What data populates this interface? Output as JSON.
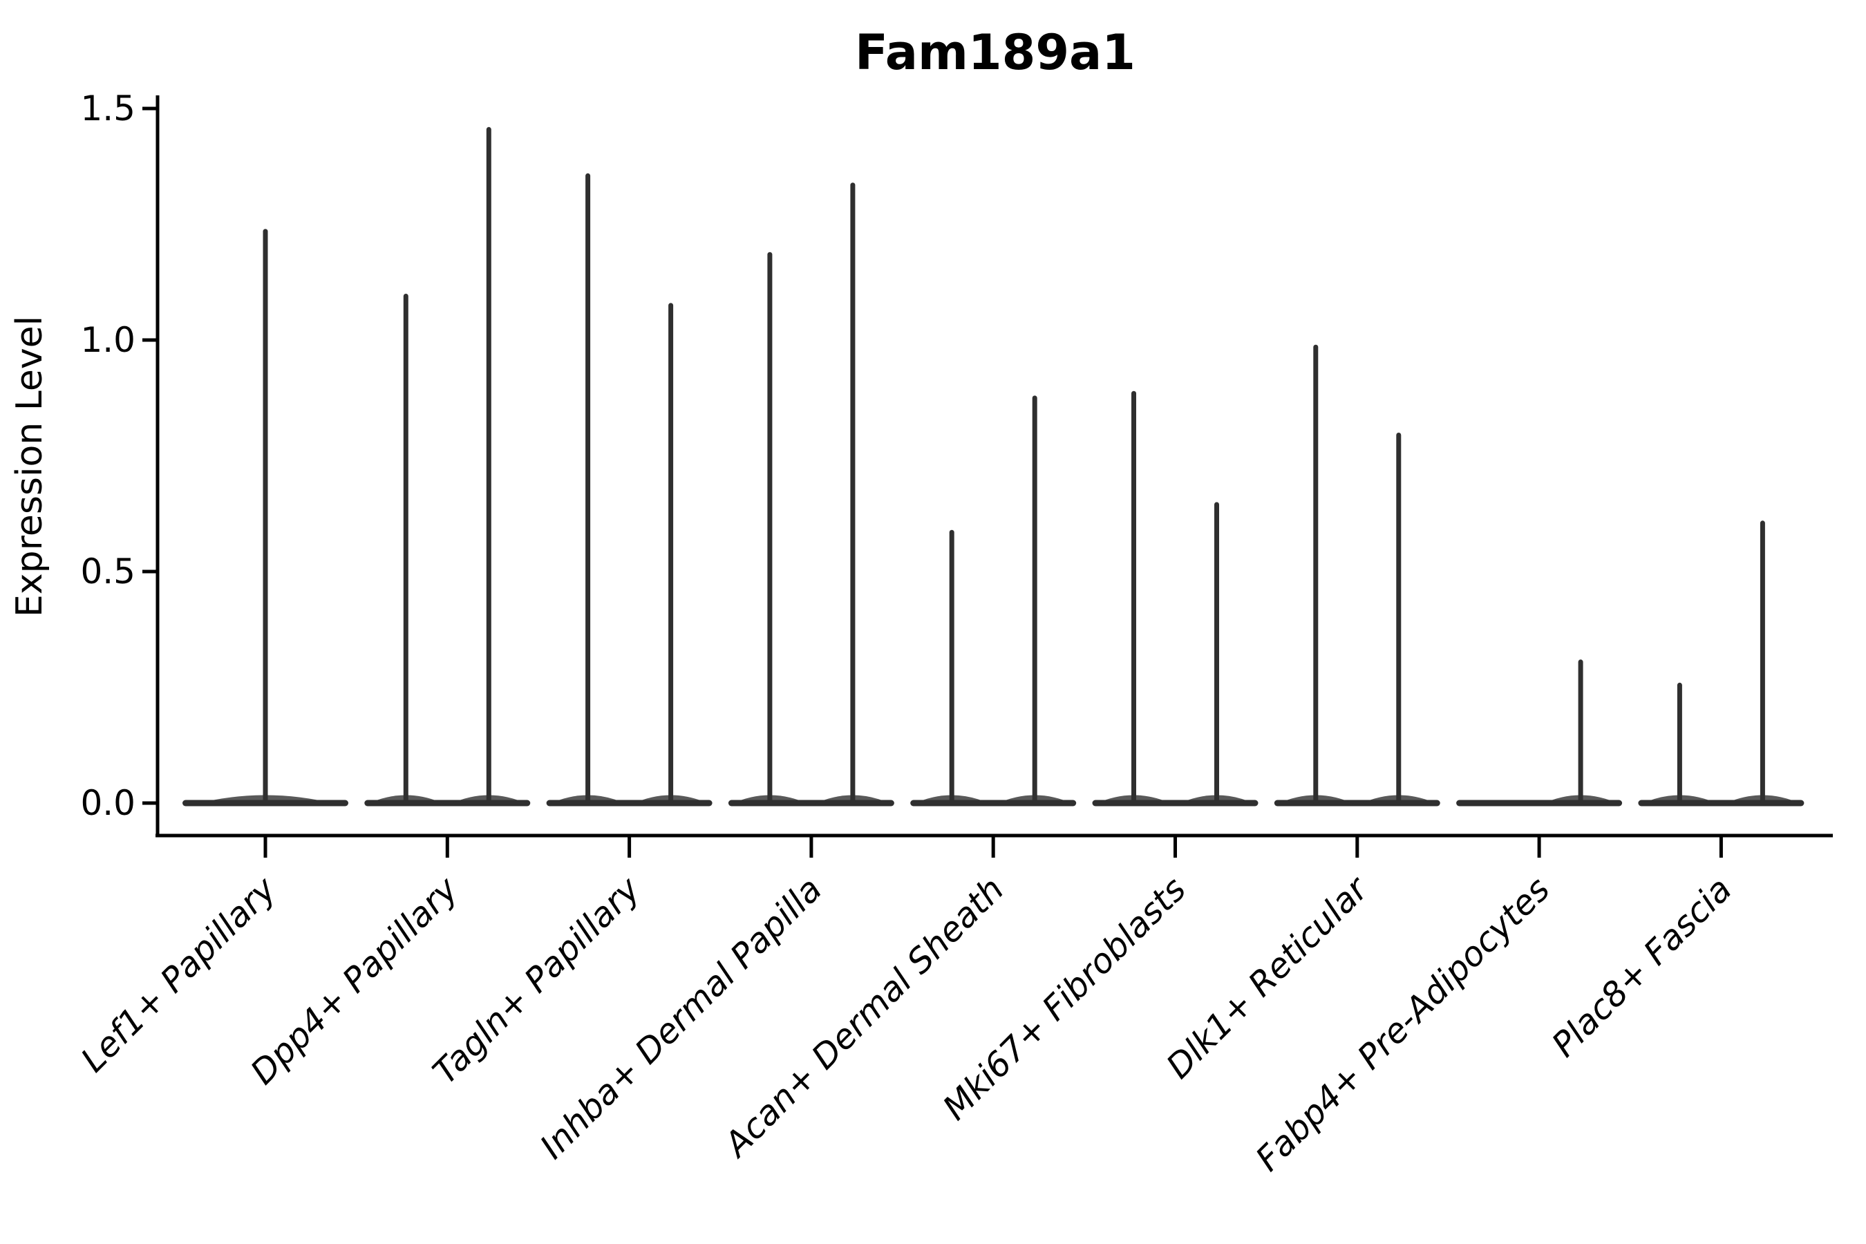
{
  "chart_data": {
    "type": "violin",
    "title": "Fam189a1",
    "ylabel": "Expression Level",
    "xlabel": "",
    "ylim": [
      0.0,
      1.5
    ],
    "ytick_values": [
      0.0,
      0.5,
      1.0,
      1.5
    ],
    "ytick_labels": [
      "0.0",
      "0.5",
      "1.0",
      "1.5"
    ],
    "grid": false,
    "legend_position": "none",
    "background_color": "#ffffff",
    "x_label_rotation_deg": 45,
    "x_label_style": "italic",
    "categories": [
      "Lef1+ Papillary",
      "Dpp4+ Papillary",
      "Tagln+ Papillary",
      "Inhba+ Dermal Papilla",
      "Acan+ Dermal Sheath",
      "Mki67+ Fibroblasts",
      "Dlk1+ Reticular",
      "Fabp4+ Pre-Adipocytes",
      "Plac8+ Fascia"
    ],
    "violins": [
      {
        "category": "Lef1+ Papillary",
        "spikes": [
          {
            "position": "center",
            "max_expression": 1.24
          }
        ]
      },
      {
        "category": "Dpp4+ Papillary",
        "spikes": [
          {
            "position": "left",
            "max_expression": 1.1
          },
          {
            "position": "right",
            "max_expression": 1.46
          }
        ]
      },
      {
        "category": "Tagln+ Papillary",
        "spikes": [
          {
            "position": "left",
            "max_expression": 1.36
          },
          {
            "position": "right",
            "max_expression": 1.08
          }
        ]
      },
      {
        "category": "Inhba+ Dermal Papilla",
        "spikes": [
          {
            "position": "left",
            "max_expression": 1.19
          },
          {
            "position": "right",
            "max_expression": 1.34
          }
        ]
      },
      {
        "category": "Acan+ Dermal Sheath",
        "spikes": [
          {
            "position": "left",
            "max_expression": 0.59
          },
          {
            "position": "right",
            "max_expression": 0.88
          }
        ]
      },
      {
        "category": "Mki67+ Fibroblasts",
        "spikes": [
          {
            "position": "left",
            "max_expression": 0.89
          },
          {
            "position": "right",
            "max_expression": 0.65
          }
        ]
      },
      {
        "category": "Dlk1+ Reticular",
        "spikes": [
          {
            "position": "left",
            "max_expression": 0.99
          },
          {
            "position": "right",
            "max_expression": 0.8
          }
        ]
      },
      {
        "category": "Fabp4+ Pre-Adipocytes",
        "spikes": [
          {
            "position": "left",
            "max_expression": 0.0
          },
          {
            "position": "right",
            "max_expression": 0.31
          }
        ]
      },
      {
        "category": "Plac8+ Fascia",
        "spikes": [
          {
            "position": "left",
            "max_expression": 0.26
          },
          {
            "position": "right",
            "max_expression": 0.61
          }
        ]
      }
    ],
    "colors": {
      "violin_stroke": "#2f2f2f",
      "axis": "#000000",
      "text": "#000000",
      "background": "#ffffff"
    }
  }
}
